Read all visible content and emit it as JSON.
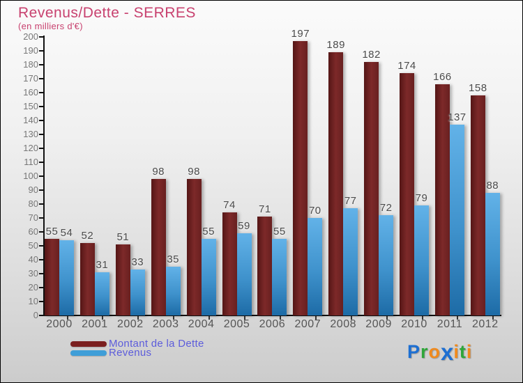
{
  "header": {
    "title": "Revenus/Dette - SERRES",
    "subtitle": "(en milliers d'€)",
    "title_color": "#c8416f"
  },
  "chart_data": {
    "type": "bar",
    "title": "Revenus/Dette - SERRES",
    "subtitle": "(en milliers d'€)",
    "categories": [
      "2000",
      "2001",
      "2002",
      "2003",
      "2004",
      "2005",
      "2006",
      "2007",
      "2008",
      "2009",
      "2010",
      "2011",
      "2012"
    ],
    "series": [
      {
        "key": "dette",
        "name": "Montant de la Dette",
        "legend_color": "#7b1f1f",
        "values": [
          55,
          52,
          51,
          98,
          98,
          74,
          71,
          197,
          189,
          182,
          174,
          166,
          158
        ]
      },
      {
        "key": "revenus",
        "name": "Revenus",
        "legend_color": "#3f9ed8",
        "values": [
          54,
          31,
          33,
          35,
          55,
          59,
          55,
          70,
          77,
          72,
          79,
          137,
          88
        ]
      }
    ],
    "ylim": [
      0,
      200
    ],
    "ytick_step": 10,
    "grid": false,
    "legend_position": "bottom-left",
    "legend_text_color": "#5c5cdb"
  },
  "logo": {
    "text": "Proxiti",
    "letters": [
      {
        "ch": "P",
        "color": "#1d6fd2",
        "big": false
      },
      {
        "ch": "r",
        "color": "#2fa63a",
        "big": false
      },
      {
        "ch": "o",
        "color": "#f08a1d",
        "big": false
      },
      {
        "ch": "x",
        "color": "#1d6fd2",
        "big": true
      },
      {
        "ch": "i",
        "color": "#f08a1d",
        "big": false
      },
      {
        "ch": "t",
        "color": "#2fa63a",
        "big": false
      },
      {
        "ch": "i",
        "color": "#f08a1d",
        "big": false
      }
    ]
  }
}
